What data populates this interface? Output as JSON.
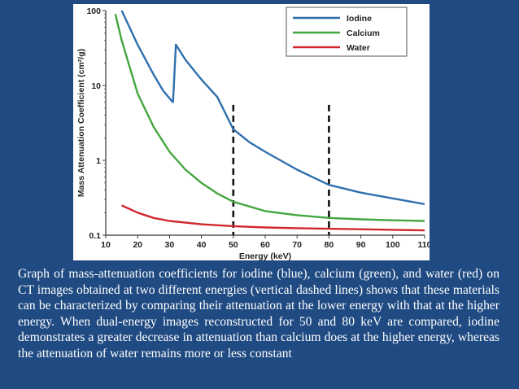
{
  "chart_data": {
    "type": "line",
    "title": "",
    "xlabel": "Energy (keV)",
    "ylabel": "Mass Attenuation Coefficient (cm²/g)",
    "yscale": "log",
    "xlim": [
      10,
      110
    ],
    "ylim": [
      0.1,
      100
    ],
    "x_ticks": [
      10,
      20,
      30,
      40,
      50,
      60,
      70,
      80,
      90,
      100,
      110
    ],
    "y_ticks": [
      {
        "value": 0.1,
        "label": "0.1"
      },
      {
        "value": 1,
        "label": "1"
      },
      {
        "value": 10,
        "label": "10"
      },
      {
        "value": 100,
        "label": "100"
      }
    ],
    "vertical_markers": [
      50,
      80
    ],
    "series": [
      {
        "name": "Iodine",
        "color": "#2f6fae",
        "points": [
          [
            15,
            100
          ],
          [
            20,
            35
          ],
          [
            25,
            14
          ],
          [
            28,
            8.5
          ],
          [
            31,
            6
          ],
          [
            31.1,
            6
          ],
          [
            32,
            35
          ],
          [
            35,
            22
          ],
          [
            40,
            12
          ],
          [
            45,
            7
          ],
          [
            50,
            2.6
          ],
          [
            55,
            1.75
          ],
          [
            60,
            1.3
          ],
          [
            70,
            0.75
          ],
          [
            80,
            0.47
          ],
          [
            90,
            0.37
          ],
          [
            100,
            0.31
          ],
          [
            110,
            0.26
          ]
        ]
      },
      {
        "name": "Calcium",
        "color": "#43a63e",
        "points": [
          [
            13,
            90
          ],
          [
            15,
            40
          ],
          [
            20,
            7.8
          ],
          [
            25,
            2.8
          ],
          [
            30,
            1.3
          ],
          [
            35,
            0.75
          ],
          [
            40,
            0.5
          ],
          [
            45,
            0.36
          ],
          [
            50,
            0.28
          ],
          [
            60,
            0.21
          ],
          [
            70,
            0.185
          ],
          [
            80,
            0.17
          ],
          [
            90,
            0.163
          ],
          [
            100,
            0.158
          ],
          [
            110,
            0.155
          ]
        ]
      },
      {
        "name": "Water",
        "color": "#d1282e",
        "points": [
          [
            15,
            0.25
          ],
          [
            20,
            0.2
          ],
          [
            25,
            0.17
          ],
          [
            30,
            0.155
          ],
          [
            40,
            0.14
          ],
          [
            50,
            0.132
          ],
          [
            60,
            0.127
          ],
          [
            70,
            0.124
          ],
          [
            80,
            0.122
          ],
          [
            90,
            0.12
          ],
          [
            100,
            0.118
          ],
          [
            110,
            0.116
          ]
        ]
      }
    ],
    "legend": [
      {
        "label": "Iodine",
        "color": "#2f6fae"
      },
      {
        "label": "Calcium",
        "color": "#43a63e"
      },
      {
        "label": "Water",
        "color": "#d1282e"
      }
    ]
  },
  "caption": "Graph of mass-attenuation coefficients for iodine (blue), calcium (green), and water (red) on CT images obtained at two different energies (vertical dashed lines) shows that these materials can be characterized by comparing their attenuation at the lower energy with that at the higher energy. When dual-energy images reconstructed for 50 and 80 keV are compared, iodine demonstrates a greater decrease in attenuation than calcium does at the higher energy, whereas the attenuation of water remains more or less constant"
}
